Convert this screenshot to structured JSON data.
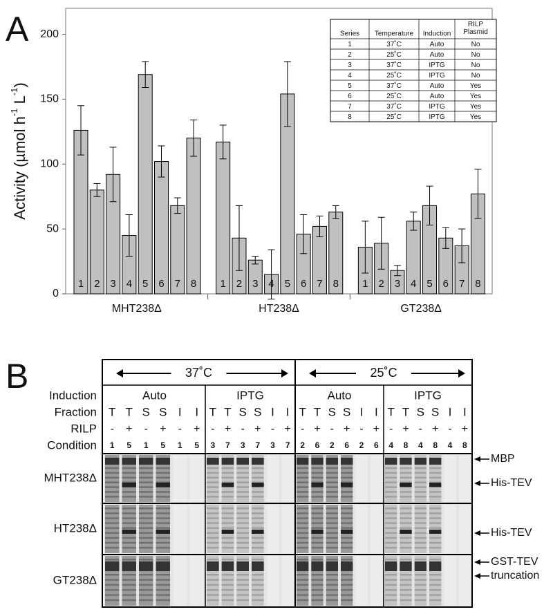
{
  "panel_a_label": "A",
  "panel_b_label": "B",
  "chart_data": {
    "type": "bar",
    "categories": [
      "MHT238Δ",
      "HT238Δ",
      "GT238Δ"
    ],
    "y_label": [
      "Activity (µmol h",
      "-1",
      " L",
      "-1",
      ")"
    ],
    "ylim": [
      0,
      220
    ],
    "yticks": [
      0,
      50,
      100,
      150,
      200
    ],
    "color": "#c0c0c0",
    "series": [
      {
        "name": "1",
        "values": [
          126,
          117,
          36
        ],
        "errors": [
          19,
          13,
          20
        ]
      },
      {
        "name": "2",
        "values": [
          80,
          43,
          39
        ],
        "errors": [
          5,
          25,
          20
        ]
      },
      {
        "name": "3",
        "values": [
          92,
          26,
          18
        ],
        "errors": [
          21,
          3,
          4
        ]
      },
      {
        "name": "4",
        "values": [
          45,
          15,
          56
        ],
        "errors": [
          16,
          19,
          7
        ]
      },
      {
        "name": "5",
        "values": [
          169,
          154,
          68
        ],
        "errors": [
          10,
          25,
          15
        ]
      },
      {
        "name": "6",
        "values": [
          102,
          46,
          43
        ],
        "errors": [
          12,
          15,
          8
        ]
      },
      {
        "name": "7",
        "values": [
          68,
          52,
          37
        ],
        "errors": [
          6,
          8,
          13
        ]
      },
      {
        "name": "8",
        "values": [
          120,
          63,
          77
        ],
        "errors": [
          14,
          5,
          19
        ]
      }
    ],
    "legend_table": {
      "header": [
        "Series",
        "Temperature",
        "Induction",
        "RILP Plasmid"
      ],
      "rows": [
        [
          "1",
          "37˚C",
          "Auto",
          "No"
        ],
        [
          "2",
          "25˚C",
          "Auto",
          "No"
        ],
        [
          "3",
          "37˚C",
          "IPTG",
          "No"
        ],
        [
          "4",
          "25˚C",
          "IPTG",
          "No"
        ],
        [
          "5",
          "37˚C",
          "Auto",
          "Yes"
        ],
        [
          "6",
          "25˚C",
          "Auto",
          "Yes"
        ],
        [
          "7",
          "37˚C",
          "IPTG",
          "Yes"
        ],
        [
          "8",
          "25˚C",
          "IPTG",
          "Yes"
        ]
      ]
    }
  },
  "gel": {
    "temperatures": [
      "37˚C",
      "25˚C"
    ],
    "row_headers": [
      "Induction",
      "Fraction",
      "RILP",
      "Condition"
    ],
    "inductions": [
      "Auto",
      "IPTG",
      "Auto",
      "IPTG"
    ],
    "fractions": [
      "T",
      "T",
      "S",
      "S",
      "I",
      "I",
      "T",
      "T",
      "S",
      "S",
      "I",
      "I",
      "T",
      "T",
      "S",
      "S",
      "I",
      "I",
      "T",
      "T",
      "S",
      "S",
      "I",
      "I"
    ],
    "rilp": [
      "-",
      "+",
      "-",
      "+",
      "-",
      "+",
      "-",
      "+",
      "-",
      "+",
      "-",
      "+",
      "-",
      "+",
      "-",
      "+",
      "-",
      "+",
      "-",
      "+",
      "-",
      "+",
      "-",
      "+"
    ],
    "conditions": [
      "1",
      "5",
      "1",
      "5",
      "1",
      "5",
      "3",
      "7",
      "3",
      "7",
      "3",
      "7",
      "2",
      "6",
      "2",
      "6",
      "2",
      "6",
      "4",
      "8",
      "4",
      "8",
      "4",
      "8"
    ],
    "constructs": [
      "MHT238Δ",
      "HT238Δ",
      "GT238Δ"
    ],
    "bands": [
      "MBP",
      "His-TEV",
      "His-TEV",
      "GST-TEV",
      "truncation"
    ]
  }
}
